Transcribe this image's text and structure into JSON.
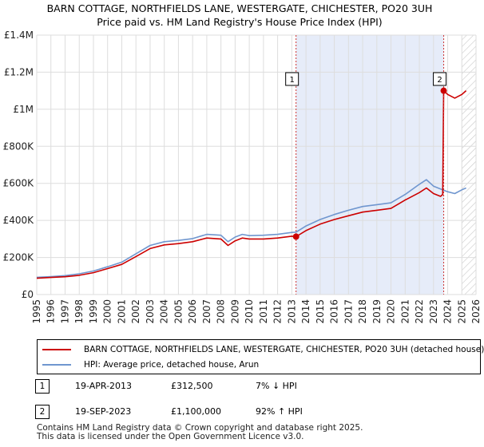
{
  "colors": {
    "property": "#cc0000",
    "hpi": "#6f96cf",
    "shade": "#e6ecf9",
    "grid": "#dddddd",
    "marker_line": "#cc3333"
  },
  "title": {
    "line1": "BARN COTTAGE, NORTHFIELDS LANE, WESTERGATE, CHICHESTER, PO20 3UH",
    "line2": "Price paid vs. HM Land Registry's House Price Index (HPI)"
  },
  "chart_data": {
    "type": "line",
    "title": "BARN COTTAGE, NORTHFIELDS LANE, WESTERGATE, CHICHESTER, PO20 3UH",
    "subtitle": "Price paid vs. HM Land Registry's House Price Index (HPI)",
    "xlabel": "",
    "ylabel": "",
    "xlim": [
      1995,
      2026
    ],
    "ylim": [
      0,
      1400000
    ],
    "grid": true,
    "x_ticks": [
      1995,
      1996,
      1997,
      1998,
      1999,
      2000,
      2001,
      2002,
      2003,
      2004,
      2005,
      2006,
      2007,
      2008,
      2009,
      2010,
      2011,
      2012,
      2013,
      2014,
      2015,
      2016,
      2017,
      2018,
      2019,
      2020,
      2021,
      2022,
      2023,
      2024,
      2025,
      2026
    ],
    "y_ticks": [
      0,
      200000,
      400000,
      600000,
      800000,
      1000000,
      1200000,
      1400000
    ],
    "y_tick_labels": [
      "£0",
      "£200K",
      "£400K",
      "£600K",
      "£800K",
      "£1M",
      "£1.2M",
      "£1.4M"
    ],
    "shaded_region": [
      2013.3,
      2023.72
    ],
    "hatched_region": [
      2025.0,
      2026.0
    ],
    "markers": [
      {
        "label": "1",
        "x": 2013.3,
        "y": 312500
      },
      {
        "label": "2",
        "x": 2023.72,
        "y": 1100000
      }
    ],
    "series": [
      {
        "name": "BARN COTTAGE, NORTHFIELDS LANE, WESTERGATE, CHICHESTER, PO20 3UH (detached house)",
        "color": "#cc0000",
        "x": [
          1995,
          1996,
          1997,
          1998,
          1999,
          2000,
          2001,
          2002,
          2003,
          2004,
          2005,
          2006,
          2007,
          2008,
          2008.5,
          2009,
          2009.5,
          2010,
          2011,
          2012,
          2013,
          2013.3,
          2014,
          2015,
          2016,
          2017,
          2018,
          2019,
          2020,
          2021,
          2022,
          2022.5,
          2023,
          2023.5,
          2023.65,
          2023.72,
          2024,
          2024.5,
          2025,
          2025.3
        ],
        "values": [
          88000,
          92000,
          96000,
          104000,
          118000,
          140000,
          163000,
          205000,
          248000,
          268000,
          275000,
          285000,
          305000,
          300000,
          265000,
          290000,
          305000,
          300000,
          300000,
          305000,
          315000,
          312500,
          345000,
          380000,
          405000,
          425000,
          445000,
          455000,
          465000,
          510000,
          550000,
          575000,
          545000,
          530000,
          540000,
          1100000,
          1080000,
          1060000,
          1080000,
          1100000
        ]
      },
      {
        "name": "HPI: Average price, detached house, Arun",
        "color": "#6f96cf",
        "x": [
          1995,
          1996,
          1997,
          1998,
          1999,
          2000,
          2001,
          2002,
          2003,
          2004,
          2005,
          2006,
          2007,
          2008,
          2008.5,
          2009,
          2009.5,
          2010,
          2011,
          2012,
          2013,
          2013.3,
          2014,
          2015,
          2016,
          2017,
          2018,
          2019,
          2020,
          2021,
          2022,
          2022.5,
          2023,
          2023.5,
          2024,
          2024.5,
          2025,
          2025.3
        ],
        "values": [
          93000,
          97000,
          102000,
          112000,
          127000,
          150000,
          175000,
          220000,
          265000,
          285000,
          292000,
          302000,
          325000,
          320000,
          285000,
          310000,
          325000,
          318000,
          320000,
          325000,
          335000,
          337000,
          370000,
          405000,
          432000,
          455000,
          475000,
          485000,
          495000,
          540000,
          595000,
          620000,
          585000,
          570000,
          555000,
          545000,
          565000,
          575000
        ]
      }
    ]
  },
  "legend": {
    "property_label": "BARN COTTAGE, NORTHFIELDS LANE, WESTERGATE, CHICHESTER, PO20 3UH (detached house)",
    "hpi_label": "HPI: Average price, detached house, Arun"
  },
  "sales": [
    {
      "marker": "1",
      "date": "19-APR-2013",
      "price": "£312,500",
      "hpi": "7% ↓ HPI"
    },
    {
      "marker": "2",
      "date": "19-SEP-2023",
      "price": "£1,100,000",
      "hpi": "92% ↑ HPI"
    }
  ],
  "footer": {
    "line1": "Contains HM Land Registry data © Crown copyright and database right 2025.",
    "line2": "This data is licensed under the Open Government Licence v3.0."
  }
}
